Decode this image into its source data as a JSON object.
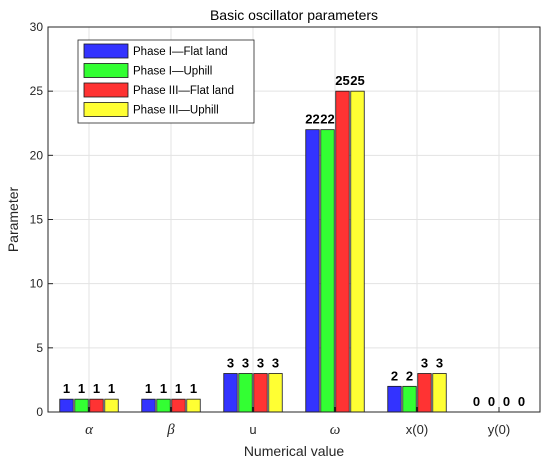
{
  "chart_data": {
    "type": "bar",
    "title": "Basic oscillator parameters",
    "xlabel": "Numerical value",
    "ylabel": "Parameter",
    "ylim": [
      0,
      30
    ],
    "yticks": [
      0,
      5,
      10,
      15,
      20,
      25,
      30
    ],
    "grid": true,
    "legend_position": "top-left",
    "categories": [
      "α",
      "β",
      "u",
      "ω",
      "x(0)",
      "y(0)"
    ],
    "series": [
      {
        "name": "Phase I—Flat land",
        "color": "#3333ff",
        "values": [
          1,
          1,
          3,
          22,
          2,
          0
        ],
        "labels": [
          "1",
          "1",
          "3",
          "22",
          "2",
          "0"
        ]
      },
      {
        "name": "Phase I—Uphill",
        "color": "#33ff33",
        "values": [
          1,
          1,
          3,
          22,
          2,
          0
        ],
        "labels": [
          "1",
          "1",
          "3",
          "22",
          "2",
          "0"
        ]
      },
      {
        "name": "Phase III—Flat land",
        "color": "#ff3333",
        "values": [
          1,
          1,
          3,
          25,
          3,
          0
        ],
        "labels": [
          "1",
          "1",
          "3",
          "25",
          "3",
          "0"
        ]
      },
      {
        "name": "Phase III—Uphill",
        "color": "#ffff33",
        "values": [
          1,
          1,
          3,
          25,
          3,
          0
        ],
        "labels": [
          "1",
          "1",
          "3",
          "25",
          "3",
          "0"
        ]
      }
    ]
  }
}
